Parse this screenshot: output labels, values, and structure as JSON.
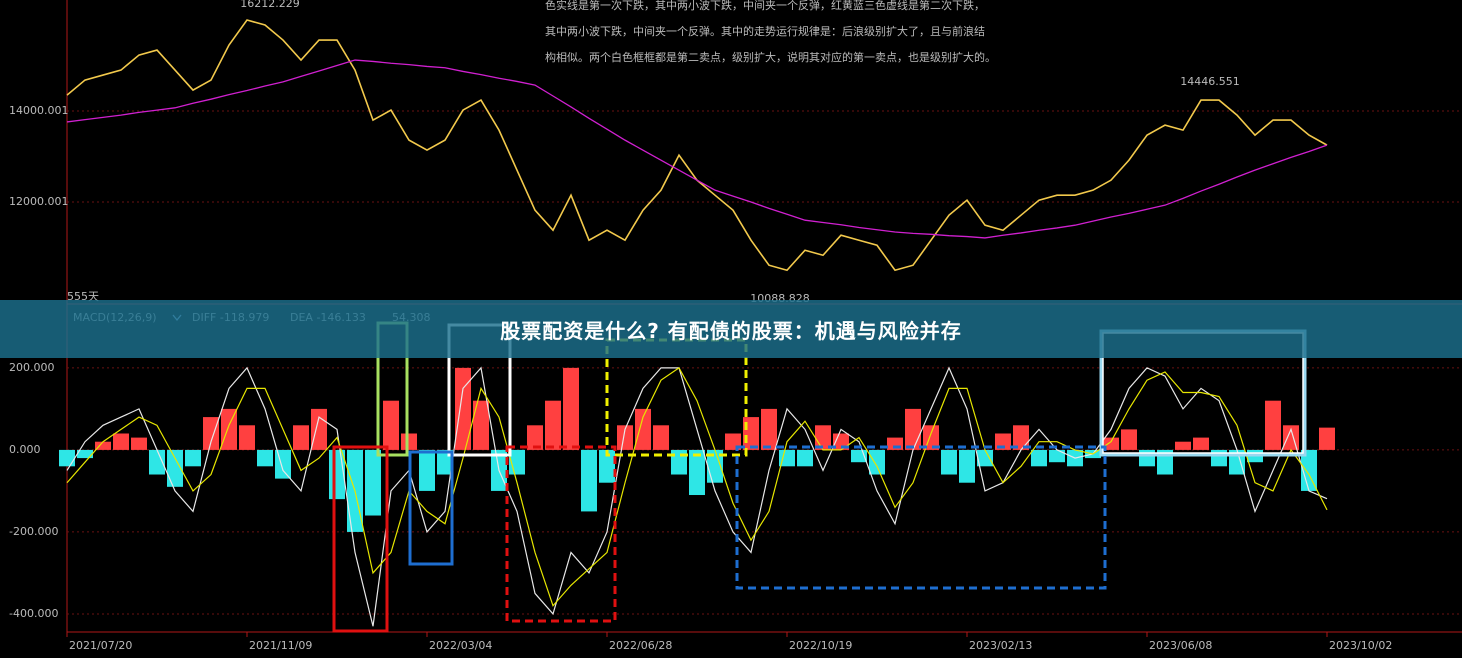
{
  "chart_data": [
    {
      "type": "line",
      "note_lines": [
        "色实线是第一次下跌，其中两小波下跌，中间夹一个反弹，红黄蓝三色虚线是第二次下跌，",
        "其中两小波下跌，中间夹一个反弹。其中的走势运行规律是：后浪级别扩大了，且与前浪结",
        "构相似。两个白色框框都是第二卖点，级别扩大，说明其对应的第一卖点，也是级别扩大的。"
      ],
      "annotations": [
        16212.229,
        10088.828,
        14446.551
      ],
      "period_label": "555天",
      "categories": [
        null,
        null,
        null,
        null,
        null,
        null,
        null,
        null,
        null,
        null,
        null,
        null,
        null,
        null,
        null,
        null,
        null,
        null,
        null,
        null,
        null,
        null,
        null,
        null,
        null,
        null,
        null,
        null,
        null,
        null,
        null,
        null,
        null,
        null,
        null,
        null,
        null,
        null,
        null,
        null,
        null,
        null,
        null,
        null,
        null,
        null,
        null,
        null,
        null,
        null,
        null,
        null,
        null,
        null,
        null,
        null,
        null,
        null,
        null,
        null,
        null,
        null,
        null,
        null,
        null,
        null,
        null,
        null,
        null,
        null,
        null
      ],
      "series": [
        {
          "color": "#f2c94c",
          "values": [
            14350,
            14680,
            14790,
            14900,
            15230,
            15340,
            14900,
            14460,
            14680,
            15450,
            16000,
            15890,
            15560,
            15120,
            15560,
            15560,
            14900,
            13800,
            14020,
            13360,
            13140,
            13360,
            14020,
            14240,
            13580,
            12700,
            11820,
            11380,
            12150,
            11160,
            11380,
            11160,
            11820,
            12260,
            13030,
            12480,
            12150,
            11820,
            11160,
            10610,
            10500,
            10940,
            10830,
            11270,
            11160,
            11050,
            10500,
            10610,
            11160,
            11710,
            12040,
            11490,
            11380,
            11710,
            12040,
            12150,
            12150,
            12260,
            12480,
            12920,
            13470,
            13690,
            13580,
            14240,
            14240,
            13910,
            13470,
            13800,
            13800,
            13470,
            13250
          ]
        },
        {
          "color": "#d020d0",
          "values": [
            13760,
            13810,
            13860,
            13910,
            13970,
            14020,
            14070,
            14170,
            14260,
            14360,
            14450,
            14550,
            14640,
            14760,
            14880,
            15000,
            15120,
            15090,
            15050,
            15020,
            14980,
            14950,
            14870,
            14800,
            14720,
            14650,
            14570,
            14330,
            14090,
            13840,
            13600,
            13360,
            13140,
            12920,
            12700,
            12480,
            12260,
            12130,
            12000,
            11860,
            11730,
            11600,
            11550,
            11500,
            11440,
            11390,
            11340,
            11310,
            11290,
            11260,
            11240,
            11210,
            11270,
            11320,
            11380,
            11430,
            11490,
            11580,
            11670,
            11750,
            11840,
            11930,
            12080,
            12240,
            12390,
            12550,
            12700,
            12840,
            12980,
            13110,
            13250
          ]
        }
      ],
      "ylim": [
        9846,
        16440
      ],
      "yticks": [
        14000.001,
        12000.001
      ],
      "grid": true
    },
    {
      "type": "macd",
      "title": "MACD(12,26,9)",
      "categories": [
        "2021/07/20",
        null,
        null,
        null,
        null,
        null,
        null,
        null,
        null,
        null,
        "2021/11/09",
        null,
        null,
        null,
        null,
        null,
        null,
        null,
        null,
        null,
        "2022/03/04",
        null,
        null,
        null,
        null,
        null,
        null,
        null,
        null,
        null,
        "2022/06/28",
        null,
        null,
        null,
        null,
        null,
        null,
        null,
        null,
        null,
        "2022/10/19",
        null,
        null,
        null,
        null,
        null,
        null,
        null,
        null,
        null,
        "2023/02/13",
        null,
        null,
        null,
        null,
        null,
        null,
        null,
        null,
        null,
        "2023/06/08",
        null,
        null,
        null,
        null,
        null,
        null,
        null,
        null,
        null,
        "2023/10/02"
      ],
      "series": [
        {
          "kind": "bar",
          "color": "#ff4040",
          "negative_color": "#2ee6e6",
          "values": [
            -40,
            -20,
            20,
            40,
            30,
            -60,
            -90,
            -40,
            80,
            100,
            60,
            -40,
            -70,
            60,
            100,
            -120,
            -200,
            -160,
            120,
            40,
            -100,
            -60,
            200,
            120,
            -100,
            -60,
            60,
            120,
            200,
            -150,
            -80,
            60,
            100,
            60,
            -60,
            -110,
            -80,
            40,
            80,
            100,
            -40,
            -40,
            60,
            40,
            -30,
            -60,
            30,
            100,
            60,
            -60,
            -80,
            -40,
            40,
            60,
            -40,
            -30,
            -40,
            -20,
            30,
            50,
            -40,
            -60,
            20,
            30,
            -40,
            -60,
            -30,
            120,
            60,
            -100,
            54.308
          ]
        },
        {
          "kind": "line",
          "name": "DIFF",
          "color": "#e8e8e8",
          "values": [
            -50,
            20,
            60,
            80,
            100,
            0,
            -100,
            -150,
            20,
            150,
            200,
            100,
            -50,
            -100,
            80,
            50,
            -250,
            -430,
            -100,
            -50,
            -200,
            -150,
            150,
            200,
            -50,
            -150,
            -350,
            -400,
            -250,
            -300,
            -200,
            50,
            150,
            200,
            200,
            50,
            -100,
            -200,
            -250,
            -50,
            100,
            50,
            -50,
            50,
            20,
            -100,
            -180,
            0,
            100,
            200,
            100,
            -100,
            -80,
            0,
            50,
            0,
            -20,
            -10,
            50,
            150,
            200,
            180,
            100,
            150,
            120,
            0,
            -150,
            -50,
            50,
            -100,
            -118.979
          ]
        },
        {
          "kind": "line",
          "name": "DEA",
          "color": "#e6e600",
          "values": [
            -80,
            -30,
            20,
            50,
            80,
            60,
            -20,
            -100,
            -60,
            60,
            150,
            150,
            50,
            -50,
            -20,
            30,
            -100,
            -300,
            -250,
            -100,
            -150,
            -180,
            -20,
            150,
            80,
            -80,
            -250,
            -380,
            -330,
            -290,
            -250,
            -80,
            80,
            170,
            200,
            120,
            0,
            -130,
            -220,
            -150,
            20,
            70,
            0,
            0,
            30,
            -40,
            -140,
            -80,
            40,
            150,
            150,
            0,
            -80,
            -40,
            20,
            20,
            0,
            -10,
            20,
            100,
            170,
            190,
            140,
            140,
            130,
            60,
            -80,
            -100,
            0,
            -60,
            -146.133
          ]
        }
      ],
      "ylim": [
        -444,
        346
      ],
      "yticks": [
        {
          "value": 200,
          "label": "200.000"
        },
        {
          "value": 0,
          "label": "0.000"
        },
        {
          "value": -200,
          "label": "-200.000"
        },
        {
          "value": -400,
          "label": "-400.000"
        }
      ],
      "grid": true
    }
  ],
  "banner": {
    "title": "股票配资是什么? 有配债的股票：机遇与风险并存"
  }
}
